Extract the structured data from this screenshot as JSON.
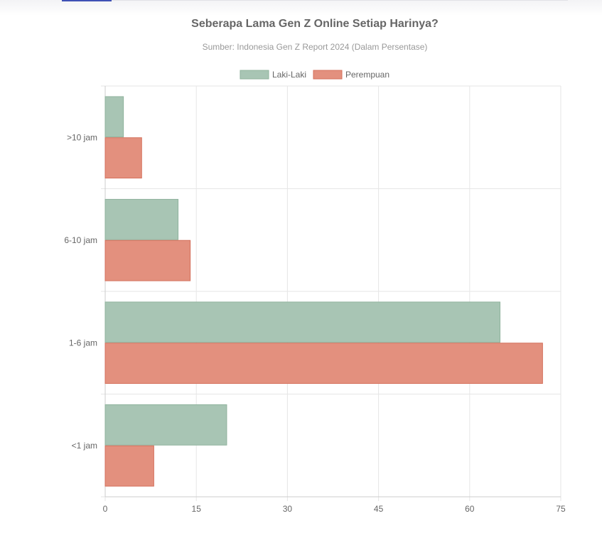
{
  "colors": {
    "accent": "#3f51b5",
    "laki": "#a8c5b4",
    "laki_border": "#8fb39d",
    "perempuan": "#e3907e",
    "perempuan_border": "#d4705c",
    "grid": "#e6e6e6"
  },
  "chart_data": {
    "type": "bar",
    "orientation": "horizontal",
    "title": "Seberapa Lama Gen Z Online Setiap Harinya?",
    "subtitle": "Sumber: Indonesia Gen Z Report 2024 (Dalam Persentase)",
    "categories": [
      ">10 jam",
      "6-10 jam",
      "1-6 jam",
      "<1 jam"
    ],
    "series": [
      {
        "name": "Laki-Laki",
        "values": [
          3,
          12,
          65,
          20
        ],
        "color": "#a8c5b4"
      },
      {
        "name": "Perempuan",
        "values": [
          6,
          14,
          72,
          8
        ],
        "color": "#e3907e"
      }
    ],
    "xlim": [
      0,
      75
    ],
    "xticks": [
      0,
      15,
      30,
      45,
      60,
      75
    ],
    "grid": true,
    "legend_position": "top"
  }
}
